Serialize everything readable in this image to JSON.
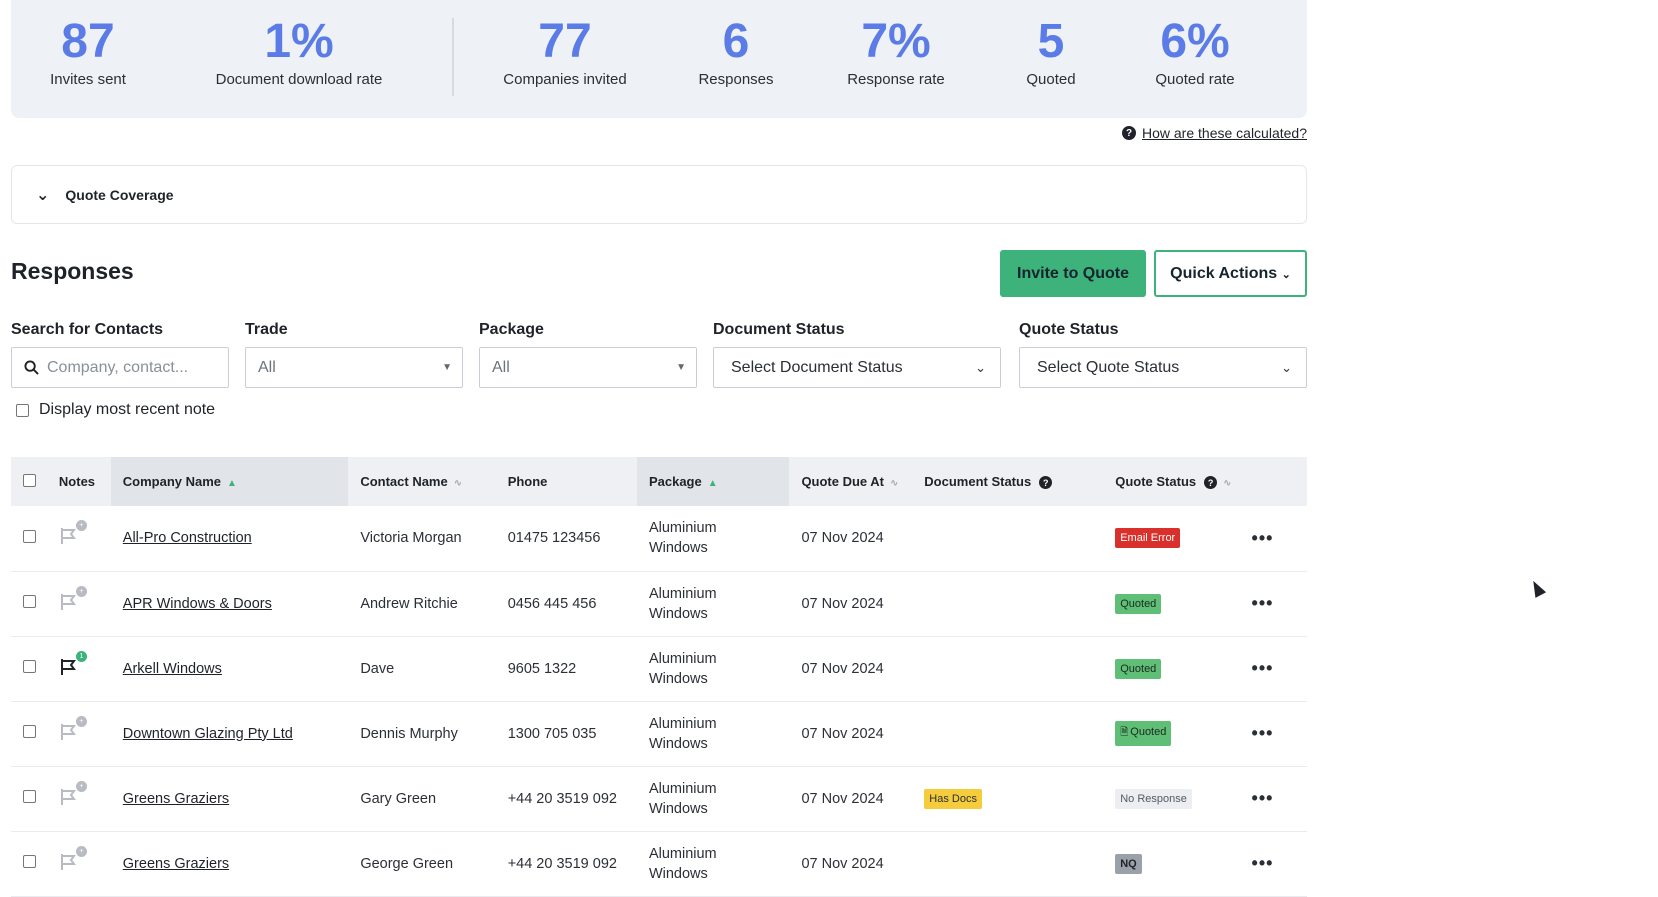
{
  "stats": [
    {
      "value": "87",
      "label": "Invites sent"
    },
    {
      "value": "1%",
      "label": "Document download rate"
    },
    {
      "value": "77",
      "label": "Companies invited"
    },
    {
      "value": "6",
      "label": "Responses"
    },
    {
      "value": "7%",
      "label": "Response rate"
    },
    {
      "value": "5",
      "label": "Quoted"
    },
    {
      "value": "6%",
      "label": "Quoted rate"
    }
  ],
  "help_link": "How are these calculated?",
  "coverage_title": "Quote Coverage",
  "responses_title": "Responses",
  "buttons": {
    "invite": "Invite to Quote",
    "quick_actions": "Quick Actions"
  },
  "filters": {
    "search_label": "Search for Contacts",
    "search_placeholder": "Company, contact...",
    "trade_label": "Trade",
    "trade_value": "All",
    "package_label": "Package",
    "package_value": "All",
    "doc_status_label": "Document Status",
    "doc_status_value": "Select Document Status",
    "quote_status_label": "Quote Status",
    "quote_status_value": "Select Quote Status"
  },
  "display_note_label": "Display most recent note",
  "table": {
    "headers": {
      "notes": "Notes",
      "company": "Company Name",
      "contact": "Contact Name",
      "phone": "Phone",
      "package": "Package",
      "due": "Quote Due At",
      "doc_status": "Document Status",
      "quote_status": "Quote Status"
    },
    "rows": [
      {
        "company": "All-Pro Construction",
        "contact": "Victoria Morgan",
        "phone": "01475 123456",
        "package_1": "Aluminium",
        "package_2": "Windows",
        "due": "07 Nov 2024",
        "doc_status": "",
        "quote_status": "Email Error",
        "note_count": "+"
      },
      {
        "company": "APR Windows & Doors",
        "contact": "Andrew Ritchie",
        "phone": "0456 445 456",
        "package_1": "Aluminium",
        "package_2": "Windows",
        "due": "07 Nov 2024",
        "doc_status": "",
        "quote_status": "Quoted",
        "note_count": "+"
      },
      {
        "company": "Arkell Windows",
        "contact": "Dave",
        "phone": "9605 1322",
        "package_1": "Aluminium",
        "package_2": "Windows",
        "due": "07 Nov 2024",
        "doc_status": "",
        "quote_status": "Quoted",
        "note_count": "1"
      },
      {
        "company": "Downtown Glazing Pty Ltd",
        "contact": "Dennis Murphy",
        "phone": "1300 705 035",
        "package_1": "Aluminium",
        "package_2": "Windows",
        "due": "07 Nov 2024",
        "doc_status": "",
        "quote_status": "Quoted",
        "note_count": "+"
      },
      {
        "company": "Greens Graziers",
        "contact": "Gary Green",
        "phone": "+44 20 3519 092",
        "package_1": "Aluminium",
        "package_2": "Windows",
        "due": "07 Nov 2024",
        "doc_status": "Has Docs",
        "quote_status": "No Response",
        "note_count": "+"
      },
      {
        "company": "Greens Graziers",
        "contact": "George Green",
        "phone": "+44 20 3519 092",
        "package_1": "Aluminium",
        "package_2": "Windows",
        "due": "07 Nov 2024",
        "doc_status": "",
        "quote_status": "NQ",
        "note_count": "+"
      }
    ]
  },
  "colors": {
    "accent": "#5b7be6",
    "green": "#3db27a",
    "error": "#d9302c",
    "warning": "#f5cc3c"
  }
}
